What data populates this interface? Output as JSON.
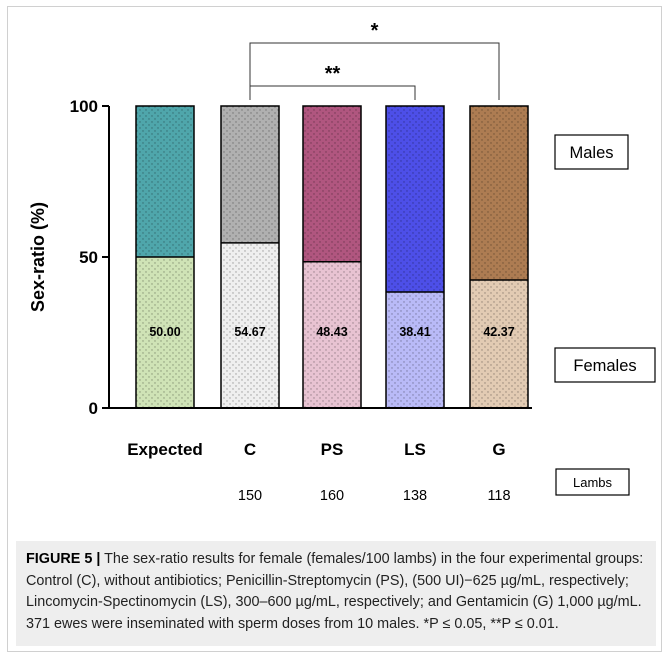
{
  "chart_data": {
    "type": "bar",
    "stacked": true,
    "ylabel": "Sex-ratio (%)",
    "ylim": [
      0,
      100
    ],
    "yticks": [
      0,
      50,
      100
    ],
    "categories": [
      "Expected",
      "C",
      "PS",
      "LS",
      "G"
    ],
    "series": [
      {
        "name": "Females",
        "values": [
          50.0,
          54.67,
          48.43,
          38.41,
          42.37
        ],
        "value_labels": [
          "50.00",
          "54.67",
          "48.43",
          "38.41",
          "42.37"
        ],
        "colors": [
          "#cfe3b6",
          "#efefef",
          "#e8c3d2",
          "#b9baf7",
          "#e2cbb3"
        ]
      },
      {
        "name": "Males",
        "values": [
          50.0,
          45.33,
          51.57,
          61.59,
          57.63
        ],
        "colors": [
          "#4fa6ab",
          "#b0b0b0",
          "#b0567f",
          "#4d4fe8",
          "#ad7c52"
        ]
      }
    ],
    "legend": {
      "males": "Males",
      "females": "Females"
    },
    "lambs_label": "Lambs",
    "lambs_counts": [
      "150",
      "160",
      "138",
      "118"
    ],
    "significance": [
      {
        "from": "C",
        "to": "G",
        "label": "*"
      },
      {
        "from": "C",
        "to": "LS",
        "label": "**"
      }
    ]
  },
  "caption": {
    "label": "FIGURE 5 |",
    "text": " The sex-ratio results for female (females/100 lambs) in the four experimental groups: Control (C), without antibiotics; Penicillin-Streptomycin (PS), (500 UI)−625 µg/mL, respectively; Lincomycin-Spectinomycin (LS), 300–600 µg/mL, respectively; and Gentamicin (G) 1,000 µg/mL. 371 ewes were inseminated with sperm doses from 10 males. *P ≤ 0.05, **P ≤ 0.01."
  }
}
